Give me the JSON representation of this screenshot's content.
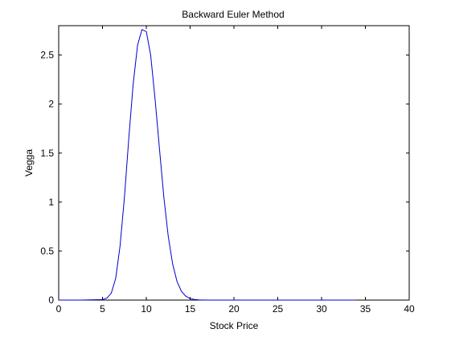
{
  "chart_data": {
    "type": "line",
    "title": "Backward Euler Method",
    "xlabel": "Stock Price",
    "ylabel": "Vegga",
    "xlim": [
      0,
      40
    ],
    "ylim": [
      0,
      2.8
    ],
    "xticks": [
      0,
      5,
      10,
      15,
      20,
      25,
      30,
      35,
      40
    ],
    "yticks": [
      0,
      0.5,
      1,
      1.5,
      2,
      2.5
    ],
    "xtick_labels": [
      "0",
      "5",
      "10",
      "15",
      "20",
      "25",
      "30",
      "35",
      "40"
    ],
    "ytick_labels": [
      "0",
      "0.5",
      "1",
      "1.5",
      "2",
      "2.5"
    ],
    "grid": false,
    "series": [
      {
        "color": "#0000cc",
        "x": [
          0,
          0.5,
          1.0,
          2.5,
          5.0,
          5.5,
          6.0,
          6.5,
          7.0,
          7.5,
          8.0,
          8.5,
          9.0,
          9.5,
          10.0,
          10.5,
          11.0,
          11.5,
          12.0,
          12.5,
          13.0,
          13.5,
          14.0,
          14.5,
          15.0,
          15.5,
          16.0,
          17.0,
          20.0,
          25.0,
          30.0,
          34.0
        ],
        "y": [
          0,
          0,
          0,
          0,
          0.005,
          0.02,
          0.07,
          0.22,
          0.55,
          1.05,
          1.65,
          2.2,
          2.6,
          2.76,
          2.74,
          2.5,
          2.05,
          1.55,
          1.05,
          0.65,
          0.37,
          0.19,
          0.09,
          0.04,
          0.015,
          0.006,
          0.002,
          0,
          0,
          0,
          0,
          0
        ]
      }
    ]
  }
}
